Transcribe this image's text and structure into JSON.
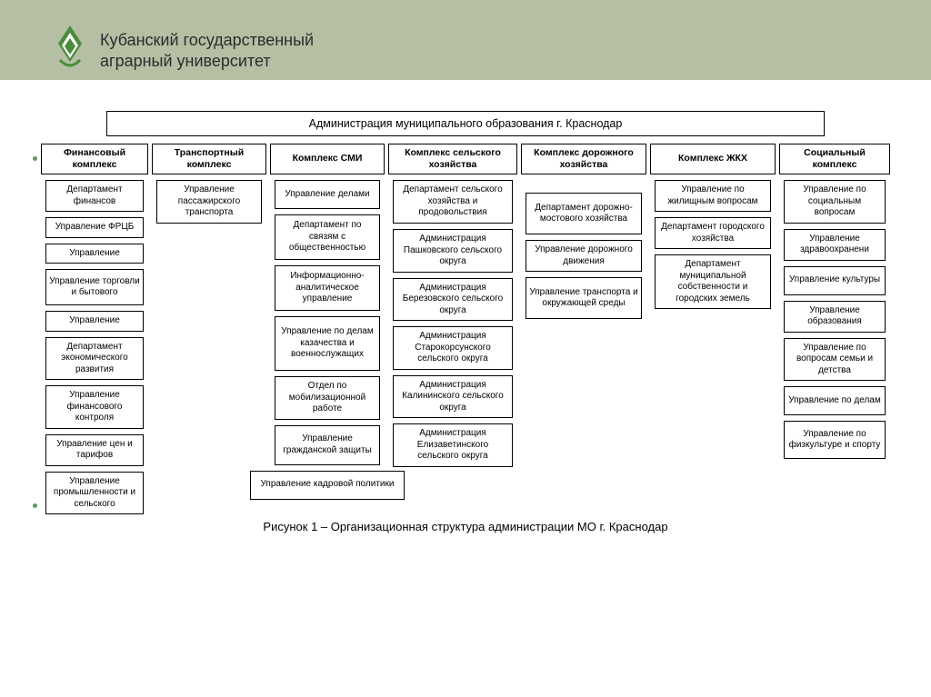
{
  "header": {
    "line1": "Кубанский государственный",
    "line2": "аграрный университет",
    "logo_color": "#4b8b3b",
    "band_color": "#b5bfa4"
  },
  "chart": {
    "root": "Администрация муниципального образования г. Краснодар",
    "caption": "Рисунок 1 – Организационная структура администрации МО г. Краснодар",
    "columns": [
      {
        "head": "Финансовый комплекс",
        "width": 118,
        "head_h": 34,
        "boxes": [
          {
            "t": "Департамент финансов",
            "h": 30
          },
          {
            "t": "Управление ФРЦБ",
            "h": 20
          },
          {
            "t": "Управление",
            "h": 20
          },
          {
            "t": "Управление торговли и бытового",
            "h": 40
          },
          {
            "t": "Управление",
            "h": 20
          },
          {
            "t": "Департамент экономического развития",
            "h": 40
          },
          {
            "t": "Управление финансового контроля",
            "h": 40
          },
          {
            "t": "Управление цен и тарифов",
            "h": 32
          },
          {
            "t": "Управление промышленности и сельского",
            "h": 40
          }
        ]
      },
      {
        "head": "Транспортный комплекс",
        "width": 126,
        "head_h": 34,
        "boxes": [
          {
            "t": "Управление пассажирского транспорта",
            "h": 44
          }
        ]
      },
      {
        "head": "Комплекс СМИ",
        "width": 126,
        "head_h": 34,
        "boxes": [
          {
            "t": "Управление делами",
            "h": 32
          },
          {
            "t": "Департамент по связям с общественностью",
            "h": 50
          },
          {
            "t": "Информационно-аналитическое управление",
            "h": 50
          },
          {
            "t": "Управление по делам казачества и военнослужащих",
            "h": 60
          },
          {
            "t": "Отдел по мобилизационной работе",
            "h": 44
          },
          {
            "t": "Управление гражданской защиты",
            "h": 44
          },
          {
            "t": "Управление кадровой политики",
            "h": 32,
            "w": 170
          }
        ]
      },
      {
        "head": "Комплекс сельского хозяйства",
        "width": 142,
        "head_h": 34,
        "boxes": [
          {
            "t": "Департамент сельского хозяйства и продовольствия",
            "h": 48
          },
          {
            "t": "Администрация Пашковского сельского округа",
            "h": 46
          },
          {
            "t": "Администрация Березовского сельского округа",
            "h": 46
          },
          {
            "t": "Администрация Старокорсунского сельского округа",
            "h": 46
          },
          {
            "t": "Администрация Калининского сельского округа",
            "h": 46
          },
          {
            "t": "Администрация Елизаветинского сельского округа",
            "h": 46
          }
        ]
      },
      {
        "head": "Комплекс дорожного хозяйства",
        "width": 138,
        "head_h": 34,
        "boxes": [
          {
            "t": "Департамент дорожно-мостового хозяйства",
            "h": 46,
            "mt": 14
          },
          {
            "t": "Управление дорожного движения",
            "h": 34
          },
          {
            "t": "Управление транспорта и окружающей среды",
            "h": 46
          }
        ]
      },
      {
        "head": "Комплекс ЖКХ",
        "width": 138,
        "head_h": 34,
        "boxes": [
          {
            "t": "Управление по жилищным вопросам",
            "h": 34
          },
          {
            "t": "Департамент городского хозяйства",
            "h": 34
          },
          {
            "t": "Департамент муниципальной собственности и городских земель",
            "h": 60
          }
        ]
      },
      {
        "head": "Социальный комплекс",
        "width": 122,
        "head_h": 34,
        "boxes": [
          {
            "t": "Управление по социальным вопросам",
            "h": 42
          },
          {
            "t": "Управление здравоохранени",
            "h": 32
          },
          {
            "t": "Управление культуры",
            "h": 32
          },
          {
            "t": "Управление образования",
            "h": 32
          },
          {
            "t": "Управление по вопросам семьи и детства",
            "h": 42
          },
          {
            "t": "Управление по делам",
            "h": 32
          },
          {
            "t": "Управление по физкультуре и спорту",
            "h": 42
          }
        ]
      }
    ]
  }
}
